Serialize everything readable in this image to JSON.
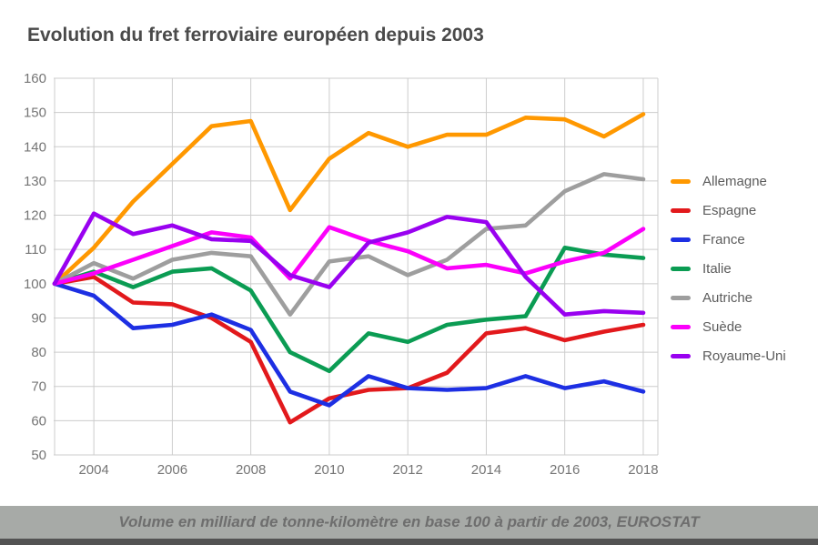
{
  "header": {
    "title": "Evolution du fret ferroviaire européen depuis 2003"
  },
  "footer": {
    "caption": "Volume en milliard de tonne-kilomètre en base 100 à partir de 2003, EUROSTAT",
    "band_color": "#a7aaa7",
    "text_color": "#6e6e6e",
    "bottom_bar_color": "#535353"
  },
  "chart_data": {
    "type": "line",
    "title": "Evolution du fret ferroviaire européen depuis 2003",
    "x": [
      2003,
      2004,
      2005,
      2006,
      2007,
      2008,
      2009,
      2010,
      2011,
      2012,
      2013,
      2014,
      2015,
      2016,
      2017,
      2018
    ],
    "x_tick_labels": [
      "2004",
      "2006",
      "2008",
      "2010",
      "2012",
      "2014",
      "2016",
      "2018"
    ],
    "y_ticks": [
      50,
      60,
      70,
      80,
      90,
      100,
      110,
      120,
      130,
      140,
      150,
      160
    ],
    "ylim": [
      50,
      160
    ],
    "grid": true,
    "legend_position": "right",
    "grid_color": "#cccccc",
    "axis_text_color": "#757575",
    "series": [
      {
        "name": "Allemagne",
        "color": "#ff9800",
        "values": [
          100,
          110.5,
          124,
          135,
          146,
          147.5,
          121.5,
          136.5,
          144,
          140,
          143.5,
          143.5,
          148.5,
          148,
          143,
          149.5
        ]
      },
      {
        "name": "Espagne",
        "color": "#e2191c",
        "values": [
          100,
          102,
          94.5,
          94,
          90,
          83,
          59.5,
          66.5,
          69,
          69.5,
          74,
          85.5,
          87,
          83.5,
          86,
          88
        ]
      },
      {
        "name": "France",
        "color": "#1d2fe3",
        "values": [
          100,
          96.5,
          87,
          88,
          91,
          86.5,
          68.5,
          64.5,
          73,
          69.5,
          69,
          69.5,
          73,
          69.5,
          71.5,
          68.5
        ]
      },
      {
        "name": "Italie",
        "color": "#0b9c53",
        "values": [
          100,
          103.5,
          99,
          103.5,
          104.5,
          98,
          80,
          74.5,
          85.5,
          83,
          88,
          89.5,
          90.5,
          110.5,
          108.5,
          107.5
        ]
      },
      {
        "name": "Autriche",
        "color": "#9e9e9e",
        "values": [
          100,
          106,
          101.5,
          107,
          109,
          108,
          91,
          106.5,
          108,
          102.5,
          107,
          116,
          117,
          127,
          132,
          130.5
        ]
      },
      {
        "name": "Suède",
        "color": "#fb00fb",
        "values": [
          100,
          103,
          107,
          111,
          115,
          113.5,
          101.5,
          116.5,
          112.5,
          109.5,
          104.5,
          105.5,
          103,
          106.5,
          109,
          116
        ]
      },
      {
        "name": "Royaume-Uni",
        "color": "#9901f0",
        "values": [
          100,
          120.5,
          114.5,
          117,
          113,
          112.5,
          102.5,
          99,
          112,
          115,
          119.5,
          118,
          102,
          91,
          92,
          91.5
        ]
      }
    ]
  }
}
